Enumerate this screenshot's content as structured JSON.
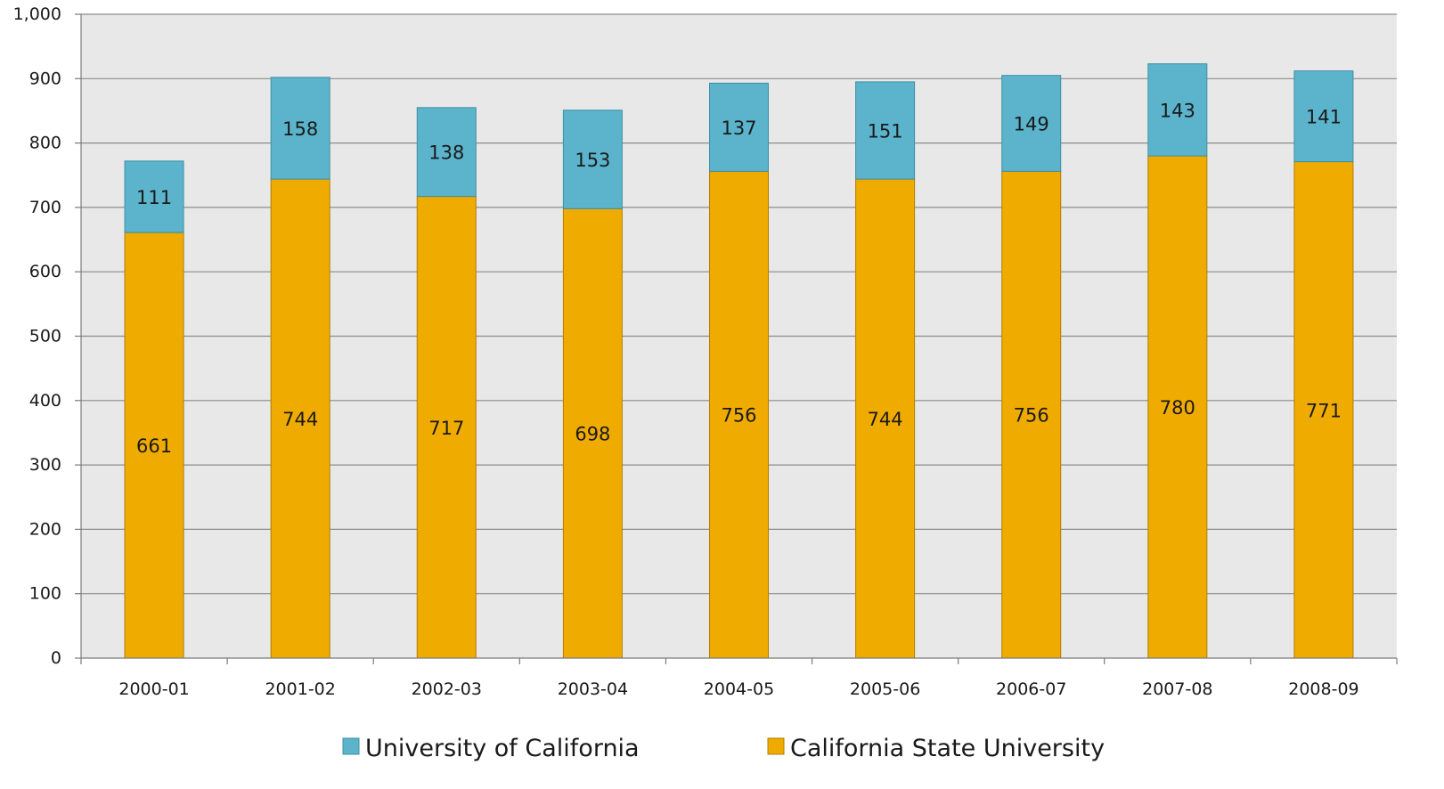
{
  "chart_data": {
    "type": "bar",
    "stacked": true,
    "title": "",
    "xlabel": "",
    "ylabel": "",
    "ylim": [
      0,
      1000
    ],
    "ytick_step": 100,
    "ytick_labels": [
      "0",
      "100",
      "200",
      "300",
      "400",
      "500",
      "600",
      "700",
      "800",
      "900",
      "1,000"
    ],
    "grid": true,
    "legend_position": "bottom",
    "categories": [
      "2000-01",
      "2001-02",
      "2002-03",
      "2003-04",
      "2004-05",
      "2005-06",
      "2006-07",
      "2007-08",
      "2008-09"
    ],
    "series": [
      {
        "name": "California State University",
        "color": "#f0ab00",
        "values": [
          661,
          744,
          717,
          698,
          756,
          744,
          756,
          780,
          771
        ]
      },
      {
        "name": "University of California",
        "color": "#5bb4cc",
        "values": [
          111,
          158,
          138,
          153,
          137,
          151,
          149,
          143,
          141
        ]
      }
    ],
    "legend_order": [
      1,
      0
    ],
    "plot_background": "#e8e8e8",
    "grid_color": "#8c8c8c"
  }
}
